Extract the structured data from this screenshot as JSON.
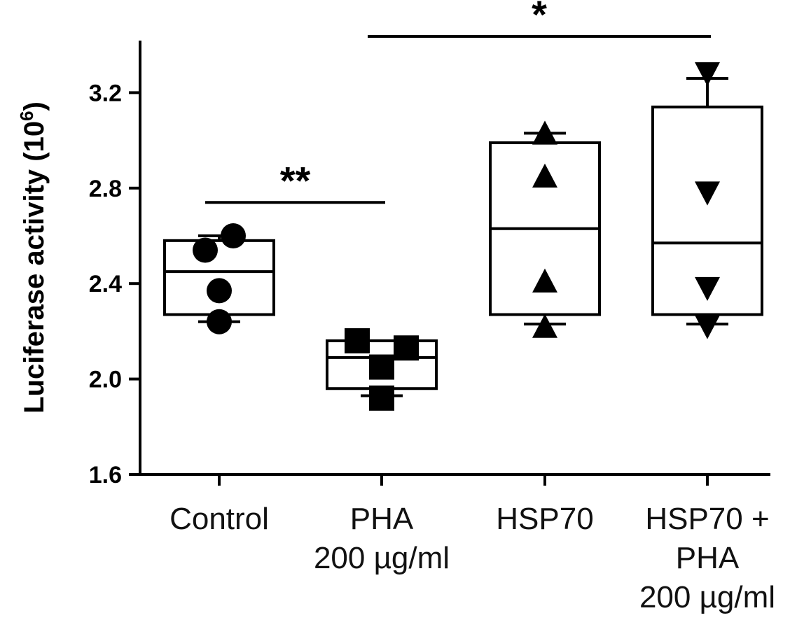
{
  "chart_data": {
    "type": "box",
    "ylabel": "Luciferase activity (10",
    "ylabel_superscript": "6",
    "ylabel_close": ")",
    "ylim": [
      1.6,
      3.4
    ],
    "yticks": [
      1.6,
      2.0,
      2.4,
      2.8,
      3.2
    ],
    "ytick_labels": [
      "1.6",
      "2.0",
      "2.4",
      "2.8",
      "3.2"
    ],
    "grid": false,
    "groups": [
      {
        "label_lines": [
          "Control"
        ],
        "marker": "circle",
        "points": [
          2.6,
          2.54,
          2.37,
          2.24
        ],
        "q1": 2.27,
        "median": 2.45,
        "q3": 2.58,
        "whisker_low": 2.24,
        "whisker_high": 2.6
      },
      {
        "label_lines": [
          "PHA",
          "200 µg/ml"
        ],
        "marker": "square",
        "points": [
          2.16,
          2.13,
          2.05,
          1.92
        ],
        "q1": 1.96,
        "median": 2.09,
        "q3": 2.16,
        "whisker_low": 1.93,
        "whisker_high": 2.16
      },
      {
        "label_lines": [
          "HSP70"
        ],
        "marker": "triangle-up",
        "points": [
          3.03,
          2.85,
          2.41,
          2.22
        ],
        "q1": 2.27,
        "median": 2.63,
        "q3": 2.99,
        "whisker_low": 2.23,
        "whisker_high": 3.03
      },
      {
        "label_lines": [
          "HSP70 +",
          "PHA",
          "200 µg/ml"
        ],
        "marker": "triangle-down",
        "points": [
          3.28,
          2.78,
          2.38,
          2.22
        ],
        "q1": 2.27,
        "median": 2.57,
        "q3": 3.14,
        "whisker_low": 2.23,
        "whisker_high": 3.26
      }
    ],
    "annotations": [
      {
        "label": "**",
        "from_group": 0,
        "to_group": 1,
        "y": 2.74
      },
      {
        "label": "*",
        "from_group": 1,
        "to_group": 3,
        "y": 3.45
      }
    ]
  }
}
